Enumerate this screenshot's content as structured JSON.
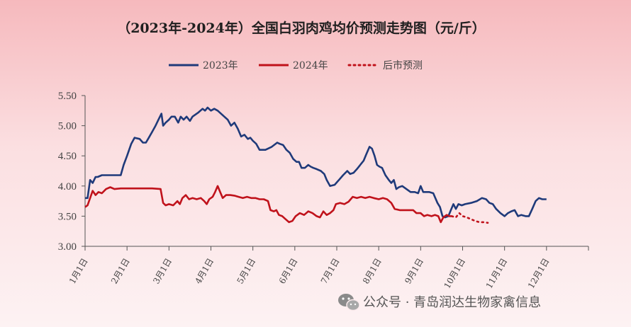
{
  "chart_data": {
    "type": "line",
    "title": "（2023年-2024年）全国白羽肉鸡均价预测走势图（元/斤）",
    "ylim": [
      3.0,
      5.5
    ],
    "yticks": [
      "5.50",
      "5.00",
      "4.50",
      "4.00",
      "3.50",
      "3.00"
    ],
    "xlim": [
      1,
      13
    ],
    "xticks": [
      "1月1日",
      "2月1日",
      "3月1日",
      "4月1日",
      "5月1日",
      "6月1日",
      "7月1日",
      "8月1日",
      "9月1日",
      "10月1日",
      "11月1日",
      "12月1日"
    ],
    "legend_position": "top",
    "series": [
      {
        "name": "2023年",
        "color": "#1f3a7a",
        "style": "solid",
        "points": [
          [
            1.0,
            3.8
          ],
          [
            1.06,
            3.8
          ],
          [
            1.12,
            4.1
          ],
          [
            1.18,
            4.05
          ],
          [
            1.25,
            4.15
          ],
          [
            1.3,
            4.15
          ],
          [
            1.4,
            4.18
          ],
          [
            1.55,
            4.18
          ],
          [
            1.7,
            4.18
          ],
          [
            1.85,
            4.18
          ],
          [
            1.92,
            4.35
          ],
          [
            2.0,
            4.5
          ],
          [
            2.1,
            4.7
          ],
          [
            2.18,
            4.8
          ],
          [
            2.3,
            4.78
          ],
          [
            2.38,
            4.72
          ],
          [
            2.45,
            4.72
          ],
          [
            2.52,
            4.8
          ],
          [
            2.6,
            4.9
          ],
          [
            2.68,
            5.0
          ],
          [
            2.75,
            5.1
          ],
          [
            2.82,
            5.2
          ],
          [
            2.86,
            5.0
          ],
          [
            2.92,
            5.05
          ],
          [
            3.0,
            5.1
          ],
          [
            3.06,
            5.15
          ],
          [
            3.14,
            5.15
          ],
          [
            3.22,
            5.05
          ],
          [
            3.28,
            5.15
          ],
          [
            3.35,
            5.1
          ],
          [
            3.42,
            5.15
          ],
          [
            3.5,
            5.08
          ],
          [
            3.56,
            5.15
          ],
          [
            3.62,
            5.18
          ],
          [
            3.7,
            5.22
          ],
          [
            3.8,
            5.28
          ],
          [
            3.86,
            5.25
          ],
          [
            3.92,
            5.3
          ],
          [
            4.0,
            5.25
          ],
          [
            4.08,
            5.28
          ],
          [
            4.16,
            5.25
          ],
          [
            4.24,
            5.2
          ],
          [
            4.32,
            5.15
          ],
          [
            4.4,
            5.1
          ],
          [
            4.48,
            5.0
          ],
          [
            4.56,
            5.05
          ],
          [
            4.64,
            4.95
          ],
          [
            4.72,
            4.82
          ],
          [
            4.8,
            4.85
          ],
          [
            4.88,
            4.78
          ],
          [
            4.94,
            4.8
          ],
          [
            5.0,
            4.75
          ],
          [
            5.08,
            4.7
          ],
          [
            5.16,
            4.6
          ],
          [
            5.3,
            4.6
          ],
          [
            5.45,
            4.65
          ],
          [
            5.58,
            4.72
          ],
          [
            5.64,
            4.7
          ],
          [
            5.72,
            4.68
          ],
          [
            5.8,
            4.6
          ],
          [
            5.88,
            4.55
          ],
          [
            5.96,
            4.45
          ],
          [
            6.04,
            4.4
          ],
          [
            6.1,
            4.4
          ],
          [
            6.16,
            4.3
          ],
          [
            6.24,
            4.3
          ],
          [
            6.32,
            4.35
          ],
          [
            6.38,
            4.32
          ],
          [
            6.44,
            4.3
          ],
          [
            6.52,
            4.28
          ],
          [
            6.62,
            4.25
          ],
          [
            6.7,
            4.2
          ],
          [
            6.76,
            4.1
          ],
          [
            6.84,
            4.0
          ],
          [
            6.95,
            4.02
          ],
          [
            7.05,
            4.1
          ],
          [
            7.15,
            4.18
          ],
          [
            7.25,
            4.25
          ],
          [
            7.32,
            4.2
          ],
          [
            7.4,
            4.22
          ],
          [
            7.48,
            4.28
          ],
          [
            7.56,
            4.35
          ],
          [
            7.64,
            4.42
          ],
          [
            7.7,
            4.52
          ],
          [
            7.78,
            4.65
          ],
          [
            7.84,
            4.62
          ],
          [
            7.9,
            4.5
          ],
          [
            7.96,
            4.35
          ],
          [
            8.02,
            4.32
          ],
          [
            8.08,
            4.3
          ],
          [
            8.16,
            4.18
          ],
          [
            8.24,
            4.1
          ],
          [
            8.3,
            4.05
          ],
          [
            8.36,
            4.1
          ],
          [
            8.42,
            3.95
          ],
          [
            8.48,
            3.98
          ],
          [
            8.56,
            4.0
          ],
          [
            8.66,
            3.95
          ],
          [
            8.76,
            3.9
          ],
          [
            8.86,
            3.9
          ],
          [
            8.94,
            3.88
          ],
          [
            9.0,
            4.0
          ],
          [
            9.06,
            3.9
          ],
          [
            9.2,
            3.9
          ],
          [
            9.3,
            3.88
          ],
          [
            9.4,
            3.72
          ],
          [
            9.46,
            3.65
          ],
          [
            9.52,
            3.5
          ],
          [
            9.58,
            3.48
          ],
          [
            9.66,
            3.5
          ],
          [
            9.72,
            3.6
          ],
          [
            9.78,
            3.7
          ],
          [
            9.84,
            3.62
          ],
          [
            9.9,
            3.7
          ],
          [
            9.98,
            3.68
          ],
          [
            10.06,
            3.7
          ],
          [
            10.2,
            3.72
          ],
          [
            10.34,
            3.75
          ],
          [
            10.46,
            3.8
          ],
          [
            10.56,
            3.78
          ],
          [
            10.64,
            3.72
          ],
          [
            10.72,
            3.7
          ],
          [
            10.8,
            3.62
          ],
          [
            10.9,
            3.55
          ],
          [
            11.0,
            3.5
          ],
          [
            11.08,
            3.55
          ],
          [
            11.16,
            3.58
          ],
          [
            11.24,
            3.6
          ],
          [
            11.32,
            3.5
          ],
          [
            11.4,
            3.52
          ],
          [
            11.5,
            3.5
          ],
          [
            11.58,
            3.5
          ],
          [
            11.66,
            3.62
          ],
          [
            11.74,
            3.75
          ],
          [
            11.82,
            3.8
          ],
          [
            11.9,
            3.78
          ],
          [
            12.0,
            3.78
          ]
        ]
      },
      {
        "name": "2024年",
        "color": "#c0121b",
        "style": "solid",
        "points": [
          [
            1.0,
            3.65
          ],
          [
            1.06,
            3.68
          ],
          [
            1.12,
            3.8
          ],
          [
            1.18,
            3.92
          ],
          [
            1.25,
            3.85
          ],
          [
            1.32,
            3.9
          ],
          [
            1.4,
            3.88
          ],
          [
            1.5,
            3.95
          ],
          [
            1.6,
            3.98
          ],
          [
            1.7,
            3.95
          ],
          [
            1.85,
            3.96
          ],
          [
            2.0,
            3.96
          ],
          [
            2.2,
            3.96
          ],
          [
            2.4,
            3.96
          ],
          [
            2.6,
            3.96
          ],
          [
            2.8,
            3.95
          ],
          [
            2.86,
            3.72
          ],
          [
            2.92,
            3.68
          ],
          [
            3.0,
            3.7
          ],
          [
            3.1,
            3.68
          ],
          [
            3.2,
            3.75
          ],
          [
            3.26,
            3.7
          ],
          [
            3.32,
            3.8
          ],
          [
            3.4,
            3.85
          ],
          [
            3.48,
            3.78
          ],
          [
            3.56,
            3.8
          ],
          [
            3.66,
            3.78
          ],
          [
            3.76,
            3.8
          ],
          [
            3.84,
            3.75
          ],
          [
            3.9,
            3.7
          ],
          [
            3.96,
            3.78
          ],
          [
            4.04,
            3.82
          ],
          [
            4.1,
            3.9
          ],
          [
            4.16,
            4.0
          ],
          [
            4.22,
            3.9
          ],
          [
            4.28,
            3.8
          ],
          [
            4.36,
            3.85
          ],
          [
            4.46,
            3.85
          ],
          [
            4.56,
            3.84
          ],
          [
            4.66,
            3.82
          ],
          [
            4.76,
            3.8
          ],
          [
            4.86,
            3.82
          ],
          [
            4.96,
            3.8
          ],
          [
            5.06,
            3.8
          ],
          [
            5.16,
            3.78
          ],
          [
            5.26,
            3.78
          ],
          [
            5.36,
            3.75
          ],
          [
            5.42,
            3.6
          ],
          [
            5.5,
            3.58
          ],
          [
            5.56,
            3.6
          ],
          [
            5.62,
            3.52
          ],
          [
            5.7,
            3.5
          ],
          [
            5.78,
            3.45
          ],
          [
            5.86,
            3.4
          ],
          [
            5.94,
            3.42
          ],
          [
            6.02,
            3.5
          ],
          [
            6.12,
            3.55
          ],
          [
            6.22,
            3.52
          ],
          [
            6.32,
            3.58
          ],
          [
            6.42,
            3.55
          ],
          [
            6.52,
            3.5
          ],
          [
            6.6,
            3.48
          ],
          [
            6.68,
            3.58
          ],
          [
            6.76,
            3.52
          ],
          [
            6.84,
            3.55
          ],
          [
            6.92,
            3.6
          ],
          [
            6.98,
            3.7
          ],
          [
            7.08,
            3.72
          ],
          [
            7.18,
            3.7
          ],
          [
            7.28,
            3.74
          ],
          [
            7.38,
            3.82
          ],
          [
            7.48,
            3.8
          ],
          [
            7.58,
            3.82
          ],
          [
            7.68,
            3.8
          ],
          [
            7.78,
            3.82
          ],
          [
            7.88,
            3.8
          ],
          [
            8.0,
            3.78
          ],
          [
            8.1,
            3.8
          ],
          [
            8.2,
            3.78
          ],
          [
            8.3,
            3.72
          ],
          [
            8.38,
            3.62
          ],
          [
            8.5,
            3.6
          ],
          [
            8.62,
            3.6
          ],
          [
            8.72,
            3.6
          ],
          [
            8.82,
            3.6
          ],
          [
            8.9,
            3.55
          ],
          [
            9.0,
            3.55
          ],
          [
            9.08,
            3.5
          ],
          [
            9.16,
            3.52
          ],
          [
            9.26,
            3.5
          ],
          [
            9.34,
            3.52
          ],
          [
            9.42,
            3.5
          ],
          [
            9.48,
            3.4
          ],
          [
            9.54,
            3.48
          ],
          [
            9.62,
            3.52
          ],
          [
            9.68,
            3.5
          ],
          [
            9.74,
            3.5
          ]
        ]
      },
      {
        "name": "后市预测",
        "color": "#c0121b",
        "style": "dotted",
        "points": [
          [
            9.74,
            3.5
          ],
          [
            9.84,
            3.48
          ],
          [
            9.92,
            3.55
          ],
          [
            10.0,
            3.5
          ],
          [
            10.1,
            3.48
          ],
          [
            10.2,
            3.45
          ],
          [
            10.3,
            3.42
          ],
          [
            10.4,
            3.4
          ],
          [
            10.5,
            3.4
          ],
          [
            10.6,
            3.39
          ]
        ]
      }
    ]
  },
  "watermark": {
    "text": "公众号 · 青岛润达生物家禽信息",
    "icon": "wechat-icon"
  },
  "colors": {
    "axis": "#555555"
  }
}
